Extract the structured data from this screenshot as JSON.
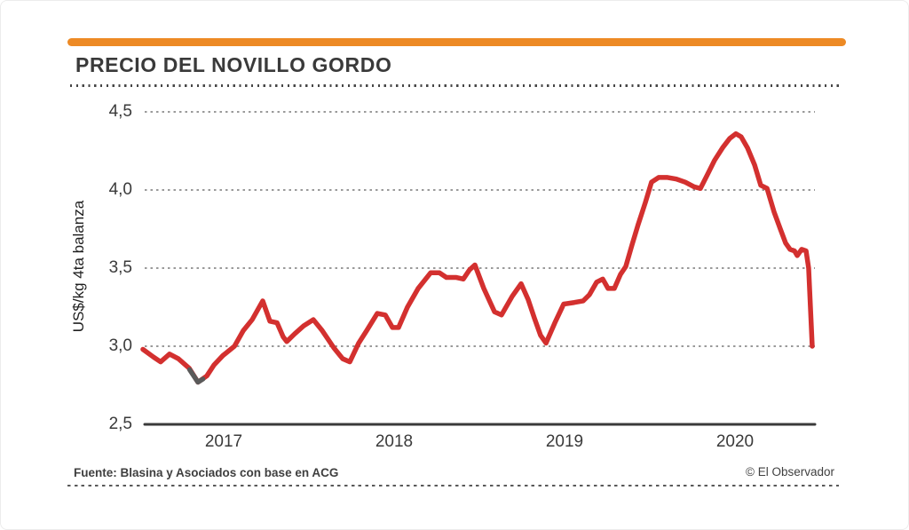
{
  "header": {
    "title": "PRECIO DEL NOVILLO GORDO",
    "accent_color": "#ed8a25"
  },
  "chart_data": {
    "type": "line",
    "title": "PRECIO DEL NOVILLO GORDO",
    "xlabel": "",
    "ylabel": "US$/kg 4ta balanza",
    "xlim": [
      2016.5,
      2020.47
    ],
    "ylim": [
      2.5,
      4.5
    ],
    "grid": "horizontal dotted lines at 3.0, 3.5, 4.0, 4.5; solid baseline at 2.5",
    "legend_position": "none",
    "line_color": "#d3302f",
    "low_segment_color": "#5a5a5a",
    "axis_color": "#3a3a3a",
    "gridline_color": "#8c8c8c",
    "yticks": [
      {
        "value": 4.5,
        "label": "4,5"
      },
      {
        "value": 4.0,
        "label": "4,0"
      },
      {
        "value": 3.5,
        "label": "3,5"
      },
      {
        "value": 3.0,
        "label": "3,0"
      },
      {
        "value": 2.5,
        "label": "2,5"
      }
    ],
    "xticks": [
      {
        "value": 2017,
        "label": "2017"
      },
      {
        "value": 2018,
        "label": "2018"
      },
      {
        "value": 2019,
        "label": "2019"
      },
      {
        "value": 2020,
        "label": "2020"
      }
    ],
    "series": [
      {
        "name": "Precio del novillo gordo (US$/kg, 4ta balanza)",
        "points": [
          [
            2016.526,
            2.98
          ],
          [
            2016.589,
            2.93
          ],
          [
            2016.63,
            2.9
          ],
          [
            2016.682,
            2.95
          ],
          [
            2016.734,
            2.92
          ],
          [
            2016.797,
            2.86
          ],
          [
            2016.849,
            2.77
          ],
          [
            2016.901,
            2.81
          ],
          [
            2016.943,
            2.88
          ],
          [
            2016.995,
            2.94
          ],
          [
            2017.063,
            3.0
          ],
          [
            2017.115,
            3.1
          ],
          [
            2017.167,
            3.17
          ],
          [
            2017.229,
            3.29
          ],
          [
            2017.271,
            3.16
          ],
          [
            2017.313,
            3.15
          ],
          [
            2017.349,
            3.06
          ],
          [
            2017.37,
            3.03
          ],
          [
            2017.417,
            3.08
          ],
          [
            2017.469,
            3.13
          ],
          [
            2017.526,
            3.17
          ],
          [
            2017.578,
            3.1
          ],
          [
            2017.646,
            2.99
          ],
          [
            2017.698,
            2.92
          ],
          [
            2017.74,
            2.9
          ],
          [
            2017.792,
            3.02
          ],
          [
            2017.839,
            3.1
          ],
          [
            2017.901,
            3.21
          ],
          [
            2017.948,
            3.2
          ],
          [
            2017.99,
            3.12
          ],
          [
            2018.026,
            3.12
          ],
          [
            2018.078,
            3.25
          ],
          [
            2018.141,
            3.37
          ],
          [
            2018.214,
            3.47
          ],
          [
            2018.266,
            3.47
          ],
          [
            2018.307,
            3.44
          ],
          [
            2018.365,
            3.44
          ],
          [
            2018.406,
            3.43
          ],
          [
            2018.443,
            3.49
          ],
          [
            2018.474,
            3.52
          ],
          [
            2018.526,
            3.37
          ],
          [
            2018.589,
            3.22
          ],
          [
            2018.63,
            3.2
          ],
          [
            2018.693,
            3.32
          ],
          [
            2018.745,
            3.4
          ],
          [
            2018.786,
            3.3
          ],
          [
            2018.823,
            3.18
          ],
          [
            2018.859,
            3.07
          ],
          [
            2018.891,
            3.02
          ],
          [
            2018.943,
            3.15
          ],
          [
            2018.995,
            3.27
          ],
          [
            2019.057,
            3.28
          ],
          [
            2019.109,
            3.29
          ],
          [
            2019.146,
            3.33
          ],
          [
            2019.188,
            3.41
          ],
          [
            2019.224,
            3.43
          ],
          [
            2019.255,
            3.37
          ],
          [
            2019.292,
            3.37
          ],
          [
            2019.328,
            3.46
          ],
          [
            2019.359,
            3.51
          ],
          [
            2019.396,
            3.65
          ],
          [
            2019.432,
            3.78
          ],
          [
            2019.474,
            3.92
          ],
          [
            2019.51,
            4.05
          ],
          [
            2019.552,
            4.08
          ],
          [
            2019.604,
            4.08
          ],
          [
            2019.656,
            4.07
          ],
          [
            2019.708,
            4.05
          ],
          [
            2019.76,
            4.02
          ],
          [
            2019.797,
            4.01
          ],
          [
            2019.839,
            4.1
          ],
          [
            2019.88,
            4.19
          ],
          [
            2019.927,
            4.27
          ],
          [
            2019.969,
            4.33
          ],
          [
            2020.005,
            4.36
          ],
          [
            2020.036,
            4.34
          ],
          [
            2020.073,
            4.27
          ],
          [
            2020.115,
            4.16
          ],
          [
            2020.151,
            4.03
          ],
          [
            2020.188,
            4.01
          ],
          [
            2020.229,
            3.86
          ],
          [
            2020.266,
            3.75
          ],
          [
            2020.297,
            3.66
          ],
          [
            2020.323,
            3.62
          ],
          [
            2020.349,
            3.61
          ],
          [
            2020.365,
            3.58
          ],
          [
            2020.391,
            3.62
          ],
          [
            2020.417,
            3.61
          ],
          [
            2020.432,
            3.5
          ],
          [
            2020.453,
            3.0
          ]
        ]
      }
    ],
    "dark_segment_points": [
      [
        2016.8,
        2.85
      ],
      [
        2016.849,
        2.77
      ],
      [
        2016.878,
        2.79
      ]
    ]
  },
  "footer": {
    "source": "Fuente: Blasina y Asociados con base en ACG",
    "credit": "© El Observador"
  }
}
